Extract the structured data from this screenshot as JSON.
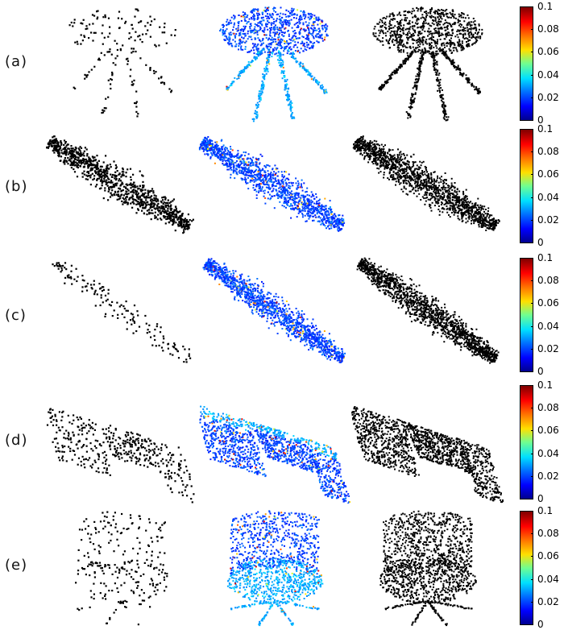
{
  "rows": [
    {
      "label": "(a)",
      "shape": "table"
    },
    {
      "label": "(b)",
      "shape": "plane"
    },
    {
      "label": "(c)",
      "shape": "plane-thin"
    },
    {
      "label": "(d)",
      "shape": "car"
    },
    {
      "label": "(e)",
      "shape": "chair"
    }
  ],
  "columns": [
    "sparse-input",
    "error-colored-output",
    "dense-ground-truth"
  ],
  "colorbar": {
    "ticks": [
      "0.1",
      "0.08",
      "0.06",
      "0.04",
      "0.02",
      "0"
    ],
    "min": 0,
    "max": 0.1,
    "colormap": "jet"
  },
  "colors": {
    "points": "#000000",
    "background": "#ffffff"
  }
}
